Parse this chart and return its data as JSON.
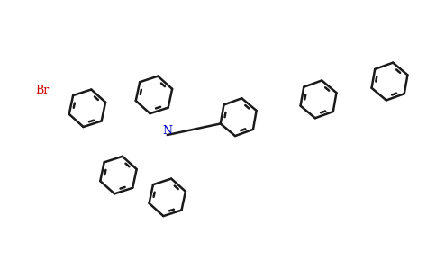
{
  "background_color": "#ffffff",
  "line_color": "#1a1a1a",
  "br_color": "#cc0000",
  "n_color": "#0000cc",
  "lw": 1.8,
  "figsize": [
    4.84,
    3.0
  ],
  "dpi": 100
}
